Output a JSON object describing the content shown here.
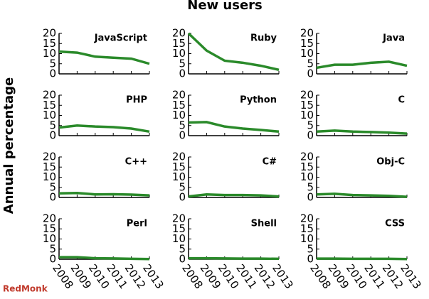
{
  "title": "New users",
  "y_label": "Annual percentage",
  "source": "RedMonk",
  "chart_data": [
    {
      "type": "line",
      "title": "JavaScript",
      "x": [
        2008,
        2009,
        2010,
        2011,
        2012,
        2013
      ],
      "values": [
        11,
        10.5,
        8.5,
        8,
        7.5,
        5
      ],
      "color": "#2a8a2a",
      "xlim": [
        2008,
        2013
      ],
      "xticks": [
        2008,
        2009,
        2010,
        2011,
        2012,
        2013
      ],
      "ylim": [
        0,
        20
      ],
      "yticks": [
        0,
        5,
        10,
        15,
        20
      ]
    },
    {
      "type": "line",
      "title": "Ruby",
      "x": [
        2008,
        2009,
        2010,
        2011,
        2012,
        2013
      ],
      "values": [
        20,
        11.5,
        6.5,
        5.5,
        4,
        2
      ],
      "color": "#2a8a2a",
      "xlim": [
        2008,
        2013
      ],
      "xticks": [
        2008,
        2009,
        2010,
        2011,
        2012,
        2013
      ],
      "ylim": [
        0,
        20
      ],
      "yticks": [
        0,
        5,
        10,
        15,
        20
      ]
    },
    {
      "type": "line",
      "title": "Java",
      "x": [
        2008,
        2009,
        2010,
        2011,
        2012,
        2013
      ],
      "values": [
        3,
        4.5,
        4.5,
        5.5,
        6,
        4
      ],
      "color": "#2a8a2a",
      "xlim": [
        2008,
        2013
      ],
      "xticks": [
        2008,
        2009,
        2010,
        2011,
        2012,
        2013
      ],
      "ylim": [
        0,
        20
      ],
      "yticks": [
        0,
        5,
        10,
        15,
        20
      ]
    },
    {
      "type": "line",
      "title": "PHP",
      "x": [
        2008,
        2009,
        2010,
        2011,
        2012,
        2013
      ],
      "values": [
        4,
        5,
        4.5,
        4.2,
        3.5,
        2
      ],
      "color": "#2a8a2a",
      "xlim": [
        2008,
        2013
      ],
      "xticks": [
        2008,
        2009,
        2010,
        2011,
        2012,
        2013
      ],
      "ylim": [
        0,
        20
      ],
      "yticks": [
        0,
        5,
        10,
        15,
        20
      ]
    },
    {
      "type": "line",
      "title": "Python",
      "x": [
        2008,
        2009,
        2010,
        2011,
        2012,
        2013
      ],
      "values": [
        6.5,
        6.7,
        4.5,
        3.5,
        2.8,
        2
      ],
      "color": "#2a8a2a",
      "xlim": [
        2008,
        2013
      ],
      "xticks": [
        2008,
        2009,
        2010,
        2011,
        2012,
        2013
      ],
      "ylim": [
        0,
        20
      ],
      "yticks": [
        0,
        5,
        10,
        15,
        20
      ]
    },
    {
      "type": "line",
      "title": "C",
      "x": [
        2008,
        2009,
        2010,
        2011,
        2012,
        2013
      ],
      "values": [
        2,
        2.5,
        2,
        1.8,
        1.5,
        1
      ],
      "color": "#2a8a2a",
      "xlim": [
        2008,
        2013
      ],
      "xticks": [
        2008,
        2009,
        2010,
        2011,
        2012,
        2013
      ],
      "ylim": [
        0,
        20
      ],
      "yticks": [
        0,
        5,
        10,
        15,
        20
      ]
    },
    {
      "type": "line",
      "title": "C++",
      "x": [
        2008,
        2009,
        2010,
        2011,
        2012,
        2013
      ],
      "values": [
        2,
        2.2,
        1.5,
        1.6,
        1.4,
        1
      ],
      "color": "#2a8a2a",
      "xlim": [
        2008,
        2013
      ],
      "xticks": [
        2008,
        2009,
        2010,
        2011,
        2012,
        2013
      ],
      "ylim": [
        0,
        20
      ],
      "yticks": [
        0,
        5,
        10,
        15,
        20
      ]
    },
    {
      "type": "line",
      "title": "C#",
      "x": [
        2008,
        2009,
        2010,
        2011,
        2012,
        2013
      ],
      "values": [
        0.5,
        1.5,
        1.2,
        1.2,
        1,
        0.5
      ],
      "color": "#2a8a2a",
      "xlim": [
        2008,
        2013
      ],
      "xticks": [
        2008,
        2009,
        2010,
        2011,
        2012,
        2013
      ],
      "ylim": [
        0,
        20
      ],
      "yticks": [
        0,
        5,
        10,
        15,
        20
      ]
    },
    {
      "type": "line",
      "title": "Obj-C",
      "x": [
        2008,
        2009,
        2010,
        2011,
        2012,
        2013
      ],
      "values": [
        1.5,
        1.8,
        1.2,
        1,
        0.8,
        0.3
      ],
      "color": "#2a8a2a",
      "xlim": [
        2008,
        2013
      ],
      "xticks": [
        2008,
        2009,
        2010,
        2011,
        2012,
        2013
      ],
      "ylim": [
        0,
        20
      ],
      "yticks": [
        0,
        5,
        10,
        15,
        20
      ]
    },
    {
      "type": "line",
      "title": "Perl",
      "x": [
        2008,
        2009,
        2010,
        2011,
        2012,
        2013
      ],
      "values": [
        1,
        1,
        0.5,
        0.4,
        0.2,
        0.1
      ],
      "color": "#2a8a2a",
      "xlim": [
        2008,
        2013
      ],
      "xticks": [
        2008,
        2009,
        2010,
        2011,
        2012,
        2013
      ],
      "ylim": [
        0,
        20
      ],
      "yticks": [
        0,
        5,
        10,
        15,
        20
      ]
    },
    {
      "type": "line",
      "title": "Shell",
      "x": [
        2008,
        2009,
        2010,
        2011,
        2012,
        2013
      ],
      "values": [
        0.5,
        0.5,
        0.4,
        0.3,
        0.3,
        0.2
      ],
      "color": "#2a8a2a",
      "xlim": [
        2008,
        2013
      ],
      "xticks": [
        2008,
        2009,
        2010,
        2011,
        2012,
        2013
      ],
      "ylim": [
        0,
        20
      ],
      "yticks": [
        0,
        5,
        10,
        15,
        20
      ]
    },
    {
      "type": "line",
      "title": "CSS",
      "x": [
        2008,
        2009,
        2010,
        2011,
        2012,
        2013
      ],
      "values": [
        0.3,
        0.3,
        0.2,
        0.2,
        0.2,
        0.1
      ],
      "color": "#2a8a2a",
      "xlim": [
        2008,
        2013
      ],
      "xticks": [
        2008,
        2009,
        2010,
        2011,
        2012,
        2013
      ],
      "ylim": [
        0,
        20
      ],
      "yticks": [
        0,
        5,
        10,
        15,
        20
      ]
    }
  ]
}
